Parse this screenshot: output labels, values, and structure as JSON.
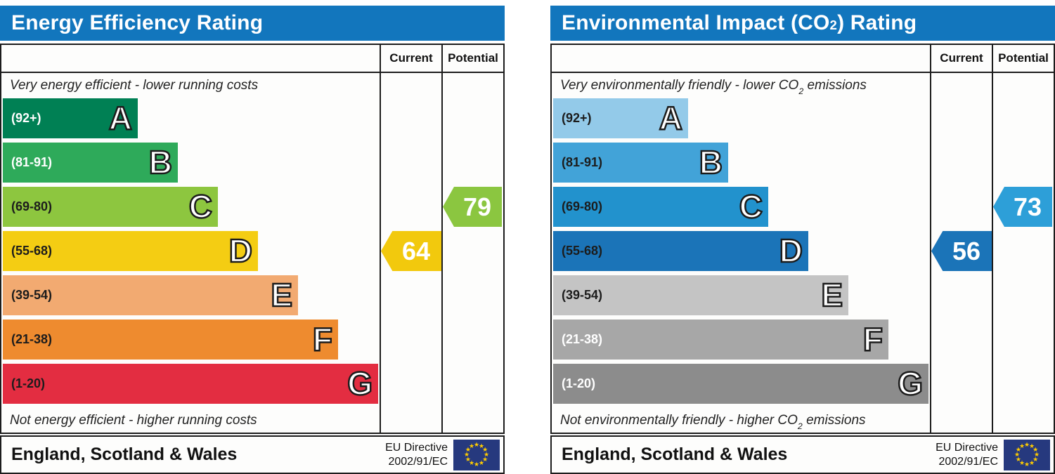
{
  "labels": {
    "current": "Current",
    "potential": "Potential"
  },
  "colors": {
    "header_blue": "#1276bd",
    "border": "#1c1c1c",
    "eu_flag_background": "#26397e",
    "eu_flag_star": "#ffcc00"
  },
  "chart_data": [
    {
      "type": "bar",
      "title": {
        "pre": "Energy Efficiency Rating",
        "sub": "",
        "post": ""
      },
      "top_caption": {
        "pre": "Very energy efficient - lower running costs",
        "sub": "",
        "post": ""
      },
      "bottom_caption": {
        "pre": "Not energy efficient - higher running costs",
        "sub": "",
        "post": ""
      },
      "bands": [
        {
          "letter": "A",
          "range": "(92+)",
          "min": 92,
          "max": 120,
          "color": "#008054",
          "label_color": "#ffffff"
        },
        {
          "letter": "B",
          "range": "(81-91)",
          "min": 81,
          "max": 91,
          "color": "#2eaa5a",
          "label_color": "#ffffff"
        },
        {
          "letter": "C",
          "range": "(69-80)",
          "min": 69,
          "max": 80,
          "color": "#8dc63f",
          "label_color": "#1c1c1c"
        },
        {
          "letter": "D",
          "range": "(55-68)",
          "min": 55,
          "max": 68,
          "color": "#f4cd13",
          "label_color": "#1c1c1c"
        },
        {
          "letter": "E",
          "range": "(39-54)",
          "min": 39,
          "max": 54,
          "color": "#f2aa71",
          "label_color": "#1c1c1c"
        },
        {
          "letter": "F",
          "range": "(21-38)",
          "min": 21,
          "max": 38,
          "color": "#ee8b2f",
          "label_color": "#1c1c1c"
        },
        {
          "letter": "G",
          "range": "(1-20)",
          "min": 1,
          "max": 20,
          "color": "#e32d41",
          "label_color": "#1c1c1c"
        }
      ],
      "current": {
        "value": 64,
        "color": "#f2c90d"
      },
      "potential": {
        "value": 79,
        "color": "#8bc640"
      },
      "footer": {
        "region": "England, Scotland & Wales",
        "directive_line1": "EU Directive",
        "directive_line2": "2002/91/EC"
      }
    },
    {
      "type": "bar",
      "title": {
        "pre": "Environmental Impact (CO",
        "sub": "2",
        "post": ") Rating"
      },
      "top_caption": {
        "pre": "Very environmentally friendly - lower CO",
        "sub": "2",
        "post": " emissions"
      },
      "bottom_caption": {
        "pre": "Not environmentally friendly - higher CO",
        "sub": "2",
        "post": " emissions"
      },
      "bands": [
        {
          "letter": "A",
          "range": "(92+)",
          "min": 92,
          "max": 120,
          "color": "#93cae9",
          "label_color": "#1c1c1c"
        },
        {
          "letter": "B",
          "range": "(81-91)",
          "min": 81,
          "max": 91,
          "color": "#42a3d8",
          "label_color": "#1c1c1c"
        },
        {
          "letter": "C",
          "range": "(69-80)",
          "min": 69,
          "max": 80,
          "color": "#2292cd",
          "label_color": "#1c1c1c"
        },
        {
          "letter": "D",
          "range": "(55-68)",
          "min": 55,
          "max": 68,
          "color": "#1b74b8",
          "label_color": "#1c1c1c"
        },
        {
          "letter": "E",
          "range": "(39-54)",
          "min": 39,
          "max": 54,
          "color": "#c4c4c4",
          "label_color": "#1c1c1c"
        },
        {
          "letter": "F",
          "range": "(21-38)",
          "min": 21,
          "max": 38,
          "color": "#a7a7a7",
          "label_color": "#ffffff"
        },
        {
          "letter": "G",
          "range": "(1-20)",
          "min": 1,
          "max": 20,
          "color": "#8c8c8c",
          "label_color": "#ffffff"
        }
      ],
      "current": {
        "value": 56,
        "color": "#1b74b8"
      },
      "potential": {
        "value": 73,
        "color": "#2d9fd8"
      },
      "footer": {
        "region": "England, Scotland & Wales",
        "directive_line1": "EU Directive",
        "directive_line2": "2002/91/EC"
      }
    }
  ]
}
